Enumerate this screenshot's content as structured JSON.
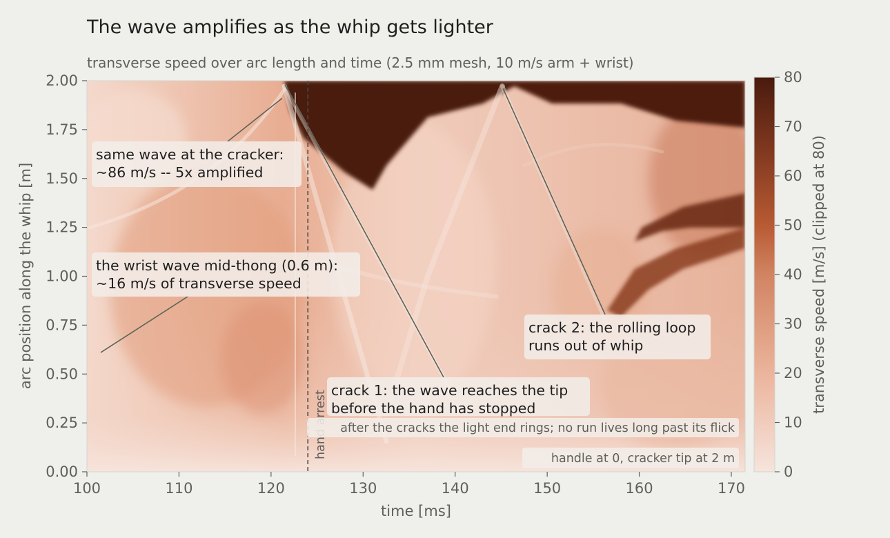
{
  "title": "The wave amplifies as the whip gets lighter",
  "subtitle": "transverse speed over arc length and time (2.5 mm mesh, 10 m/s arm + wrist)",
  "colors": {
    "low": "#f6e4dc",
    "mid": "#b85a33",
    "high": "#4a1a0e",
    "background": "#eff0eb",
    "leader": "#5a6358"
  },
  "chart_data": {
    "type": "heatmap",
    "title": "The wave amplifies as the whip gets lighter",
    "subtitle": "transverse speed over arc length and time (2.5 mm mesh, 10 m/s arm + wrist)",
    "xlabel": "time  [ms]",
    "ylabel": "arc position along the whip  [m]",
    "xlim": [
      100,
      171.5
    ],
    "ylim": [
      0,
      2
    ],
    "x_ticks": [
      "100",
      "110",
      "120",
      "130",
      "140",
      "150",
      "160",
      "170"
    ],
    "x_tick_values": [
      100,
      110,
      120,
      130,
      140,
      150,
      160,
      170
    ],
    "y_ticks": [
      "0.00",
      "0.25",
      "0.50",
      "0.75",
      "1.00",
      "1.25",
      "1.50",
      "1.75",
      "2.00"
    ],
    "y_tick_values": [
      0,
      0.25,
      0.5,
      0.75,
      1.0,
      1.25,
      1.5,
      1.75,
      2.0
    ],
    "colorbar": {
      "label": "transverse speed  [m/s]  (clipped at 80)",
      "range": [
        0,
        80
      ],
      "ticks": [
        "0",
        "10",
        "20",
        "30",
        "40",
        "50",
        "60",
        "70",
        "80"
      ],
      "tick_values": [
        0,
        10,
        20,
        30,
        40,
        50,
        60,
        70,
        80
      ]
    },
    "hand_arrest": {
      "x": 124,
      "label": "hand arrest"
    },
    "features": {
      "wave_front_1": {
        "from": [
          101.5,
          0.61
        ],
        "to": [
          121.5,
          2.0
        ]
      },
      "crack_1": {
        "time": 121.5,
        "position": 2.0
      },
      "crack_2": {
        "time": 145.2,
        "position": 2.0
      },
      "dark_band_1": {
        "from": [
          145.5,
          1.98
        ],
        "to": [
          171.5,
          1.5
        ]
      },
      "dark_band_2": {
        "from": [
          155.5,
          0.85
        ],
        "to": [
          171.5,
          1.35
        ]
      }
    },
    "annotations": [
      {
        "id": "cracker",
        "lines": [
          "same wave at the cracker:",
          "~86 m/s -- 5x amplified"
        ],
        "point": [
          121.2,
          1.91
        ]
      },
      {
        "id": "wrist",
        "lines": [
          "the wrist wave mid-thong (0.6 m):",
          "~16 m/s of transverse speed"
        ],
        "point": [
          101.5,
          0.61
        ]
      },
      {
        "id": "crack2",
        "lines": [
          "crack 2: the rolling loop",
          "runs out of whip"
        ],
        "point": [
          145.2,
          1.96
        ]
      },
      {
        "id": "crack1",
        "lines": [
          "crack 1: the wave reaches the tip",
          "before the hand has stopped"
        ],
        "point": [
          121.5,
          1.98
        ]
      }
    ],
    "notes": [
      "after the cracks the light end rings; no run lives long past its flick",
      "handle at 0, cracker tip at 2 m"
    ]
  }
}
